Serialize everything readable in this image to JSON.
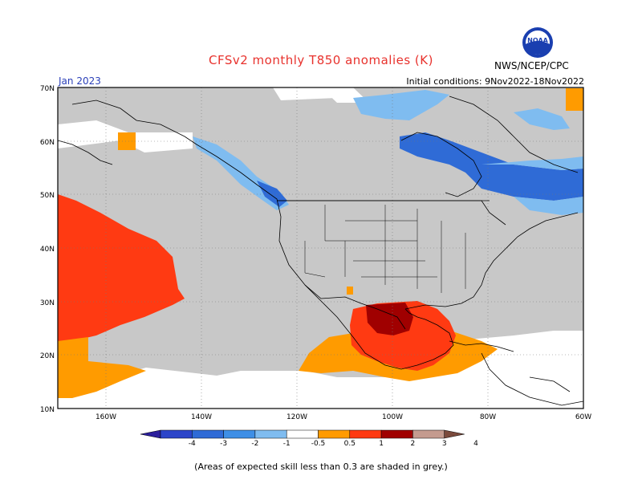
{
  "title": "CFSv2 monthly T850 anomalies (K)",
  "month": "Jan 2023",
  "initial_conditions": "Initial conditions: 9Nov2022-18Nov2022",
  "org": "NWS/NCEP/CPC",
  "logo_text": "NOAA",
  "footnote": "(Areas of expected skill less than 0.3 are shaded in grey.)",
  "axes": {
    "lon_labels": [
      "160W",
      "140W",
      "120W",
      "100W",
      "80W",
      "60W"
    ],
    "lat_labels": [
      "70N",
      "60N",
      "50N",
      "40N",
      "30N",
      "20N",
      "10N"
    ]
  },
  "colorbar": {
    "labels": [
      "-4",
      "-3",
      "-2",
      "-1",
      "-0.5",
      "0.5",
      "1",
      "2",
      "3",
      "4"
    ],
    "colors": [
      "#2b1e9c",
      "#2c45c9",
      "#2f6bd6",
      "#3e8fe6",
      "#7fbcf0",
      "#ffffff",
      "#ff9b00",
      "#ff3a12",
      "#a00000",
      "#c49b8f",
      "#7a4a3c"
    ]
  },
  "colors": {
    "grey": "#c8c8c8",
    "title": "#e8322d",
    "month": "#2a3fb8"
  }
}
